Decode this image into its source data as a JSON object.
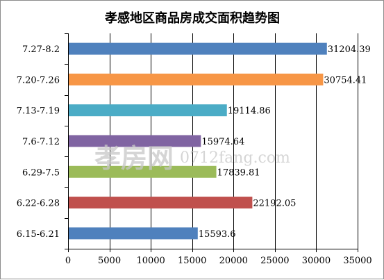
{
  "chart_data": {
    "type": "bar",
    "orientation": "horizontal",
    "title": "孝感地区商品房成交面积趋势图",
    "categories": [
      "7.27-8.2",
      "7.20-7.26",
      "7.13-7.19",
      "7.6-7.12",
      "6.29-7.5",
      "6.22-6.28",
      "6.15-6.21"
    ],
    "values": [
      31204.39,
      30754.41,
      19114.86,
      15974.64,
      17839.81,
      22192.05,
      15593.6
    ],
    "value_labels": [
      "31204.39",
      "30754.41",
      "19114.86",
      "15974.64",
      "17839.81",
      "22192.05",
      "15593.6"
    ],
    "bar_colors": [
      "#4f81bd",
      "#f79646",
      "#4bacc6",
      "#8064a2",
      "#9bbb59",
      "#c0504d",
      "#4f81bd"
    ],
    "xlim": [
      0,
      35000
    ],
    "xticks": [
      0,
      5000,
      10000,
      15000,
      20000,
      25000,
      30000,
      35000
    ],
    "xtick_labels": [
      "0",
      "5000",
      "10000",
      "15000",
      "20000",
      "25000",
      "30000",
      "35000"
    ],
    "grid": "vertical",
    "legend": "none",
    "xlabel": "",
    "ylabel": ""
  },
  "watermark": {
    "logo": "孝房网",
    "url": "0712fang.com"
  }
}
